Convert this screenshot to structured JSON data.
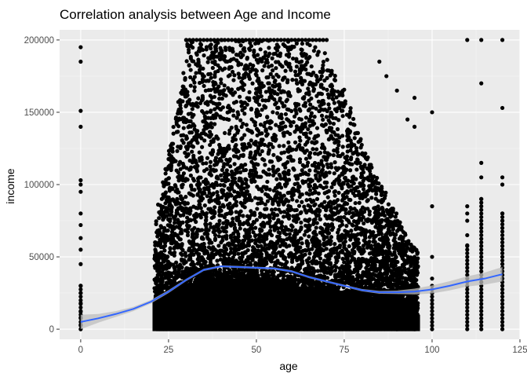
{
  "chart_data": {
    "type": "scatter",
    "title": "Correlation analysis between Age and Income",
    "xlabel": "age",
    "ylabel": "income",
    "xlim": [
      -6,
      125
    ],
    "ylim": [
      -7000,
      207000
    ],
    "x_ticks": [
      0,
      25,
      50,
      75,
      100,
      125
    ],
    "x_tick_labels": [
      "0",
      "25",
      "50",
      "75",
      "100",
      "125"
    ],
    "y_ticks": [
      0,
      50000,
      100000,
      150000,
      200000
    ],
    "y_tick_labels": [
      "0",
      "50000",
      "100000",
      "150000",
      "200000"
    ],
    "grid": true,
    "panel_background": "#ebebeb",
    "point_color": "#000000",
    "smooth_color": "#3366ff",
    "ribbon_color": "#bdbdbd",
    "outlier_points": [
      [
        0,
        195000
      ],
      [
        0,
        185000
      ],
      [
        0,
        151000
      ],
      [
        0,
        140000
      ],
      [
        0,
        103000
      ],
      [
        0,
        100000
      ],
      [
        0,
        95000
      ],
      [
        0,
        80000
      ],
      [
        0,
        72000
      ],
      [
        0,
        63000
      ],
      [
        0,
        55000
      ],
      [
        0,
        45000
      ],
      [
        0,
        30000
      ],
      [
        0,
        25000
      ],
      [
        0,
        18000
      ],
      [
        0,
        12000
      ],
      [
        0,
        8000
      ],
      [
        0,
        3000
      ],
      [
        110,
        200000
      ],
      [
        110,
        85000
      ],
      [
        110,
        80000
      ],
      [
        110,
        75000
      ],
      [
        110,
        65000
      ],
      [
        110,
        58000
      ],
      [
        114,
        200000
      ],
      [
        114,
        170000
      ],
      [
        114,
        115000
      ],
      [
        114,
        105000
      ],
      [
        114,
        90000
      ],
      [
        120,
        200000
      ],
      [
        120,
        153000
      ],
      [
        120,
        105000
      ],
      [
        120,
        100000
      ],
      [
        120,
        80000
      ],
      [
        120,
        75000
      ],
      [
        100,
        150000
      ],
      [
        100,
        85000
      ],
      [
        100,
        50000
      ],
      [
        100,
        35000
      ],
      [
        100,
        25000
      ],
      [
        95,
        160000
      ],
      [
        95,
        140000
      ],
      [
        93,
        145000
      ],
      [
        90,
        165000
      ],
      [
        85,
        185000
      ],
      [
        87,
        175000
      ]
    ],
    "density_profile": [
      [
        21,
        20000,
        75000
      ],
      [
        25,
        25000,
        130000
      ],
      [
        30,
        30000,
        200000
      ],
      [
        35,
        35000,
        200000
      ],
      [
        40,
        35000,
        200000
      ],
      [
        45,
        35000,
        200000
      ],
      [
        50,
        35000,
        200000
      ],
      [
        55,
        32000,
        200000
      ],
      [
        60,
        30000,
        200000
      ],
      [
        65,
        28000,
        200000
      ],
      [
        70,
        26000,
        190000
      ],
      [
        75,
        24000,
        160000
      ],
      [
        80,
        22000,
        125000
      ],
      [
        85,
        20000,
        100000
      ],
      [
        90,
        15000,
        75000
      ],
      [
        95,
        10000,
        55000
      ]
    ],
    "smooth_line": [
      [
        0,
        5000
      ],
      [
        5,
        7500
      ],
      [
        10,
        10500
      ],
      [
        15,
        14000
      ],
      [
        20,
        19000
      ],
      [
        25,
        26000
      ],
      [
        30,
        34000
      ],
      [
        35,
        41000
      ],
      [
        40,
        43500
      ],
      [
        45,
        43000
      ],
      [
        50,
        42500
      ],
      [
        55,
        42000
      ],
      [
        60,
        40000
      ],
      [
        65,
        36000
      ],
      [
        70,
        33000
      ],
      [
        75,
        30000
      ],
      [
        80,
        27000
      ],
      [
        85,
        25500
      ],
      [
        90,
        25500
      ],
      [
        95,
        26000
      ],
      [
        100,
        27500
      ],
      [
        105,
        30000
      ],
      [
        110,
        33000
      ],
      [
        115,
        35000
      ],
      [
        120,
        38000
      ]
    ],
    "smooth_ci_halfwidth": [
      [
        0,
        5000
      ],
      [
        5,
        3000
      ],
      [
        10,
        2000
      ],
      [
        15,
        1500
      ],
      [
        20,
        1200
      ],
      [
        25,
        1000
      ],
      [
        30,
        800
      ],
      [
        40,
        700
      ],
      [
        50,
        700
      ],
      [
        60,
        700
      ],
      [
        70,
        700
      ],
      [
        80,
        800
      ],
      [
        90,
        1200
      ],
      [
        95,
        2000
      ],
      [
        100,
        2800
      ],
      [
        105,
        3200
      ],
      [
        110,
        3500
      ],
      [
        115,
        4200
      ],
      [
        120,
        5000
      ]
    ]
  }
}
